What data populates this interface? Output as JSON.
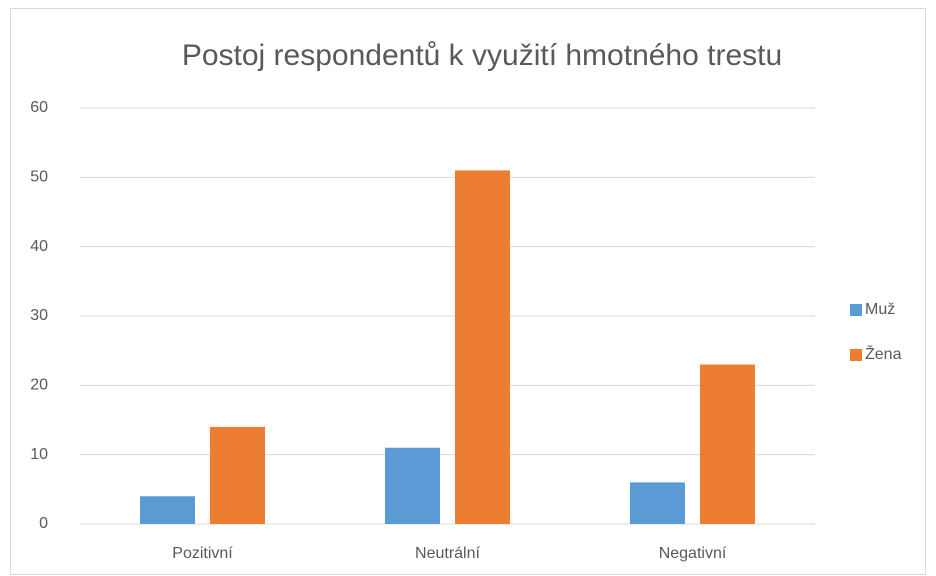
{
  "chart_data": {
    "type": "bar",
    "title": "Postoj respondentů k využití hmotného trestu",
    "categories": [
      "Pozitivní",
      "Neutrální",
      "Negativní"
    ],
    "series": [
      {
        "name": "Muž",
        "color": "#5b9bd5",
        "values": [
          4,
          11,
          6
        ]
      },
      {
        "name": "Žena",
        "color": "#ed7d31",
        "values": [
          14,
          51,
          23
        ]
      }
    ],
    "ylim": [
      0,
      60
    ],
    "yticks": [
      0,
      10,
      20,
      30,
      40,
      50,
      60
    ],
    "grid": true,
    "legend": "right"
  }
}
